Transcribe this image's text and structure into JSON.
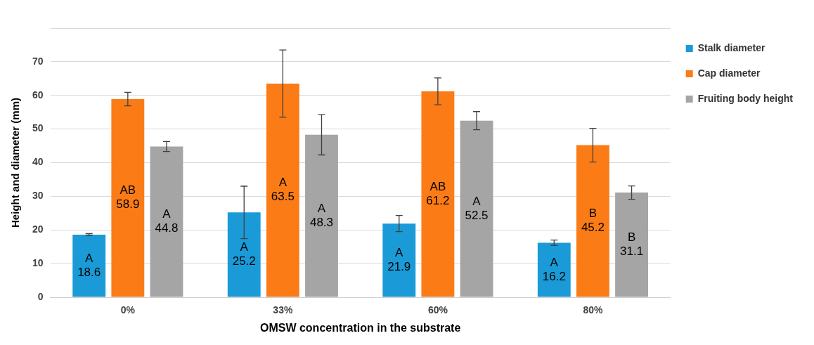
{
  "chart_data": {
    "type": "bar",
    "xlabel": "OMSW concentration in the substrate",
    "ylabel": "Height and diameter (mm)",
    "categories": [
      "0%",
      "33%",
      "60%",
      "80%"
    ],
    "series": [
      {
        "name": "Stalk diameter",
        "color": "#1a9bd7",
        "values": [
          18.6,
          25.2,
          21.9,
          16.2
        ],
        "errors": [
          0.3,
          7.8,
          2.4,
          0.8
        ],
        "value_labels": [
          "A\n18.6",
          "A\n25.2",
          "A\n21.9",
          "A\n16.2"
        ]
      },
      {
        "name": "Cap diameter",
        "color": "#fb7c17",
        "values": [
          58.9,
          63.5,
          61.2,
          45.2
        ],
        "errors": [
          2,
          10,
          4,
          5
        ],
        "value_labels": [
          "AB\n58.9",
          "A\n63.5",
          "AB\n61.2",
          "B\n45.2"
        ]
      },
      {
        "name": "Fruiting body height",
        "color": "#a5a5a5",
        "values": [
          44.8,
          48.3,
          52.5,
          31.1
        ],
        "errors": [
          1.5,
          6,
          2.7,
          2
        ],
        "value_labels": [
          "A\n44.8",
          "A\n48.3",
          "A\n52.5",
          "B\n31.1"
        ]
      }
    ],
    "ylim": [
      0,
      80
    ],
    "yticks": [
      0,
      10,
      20,
      30,
      40,
      50,
      60,
      70,
      {
        "value": 80,
        "label": null
      }
    ],
    "grid": "y",
    "legend": "top right"
  }
}
